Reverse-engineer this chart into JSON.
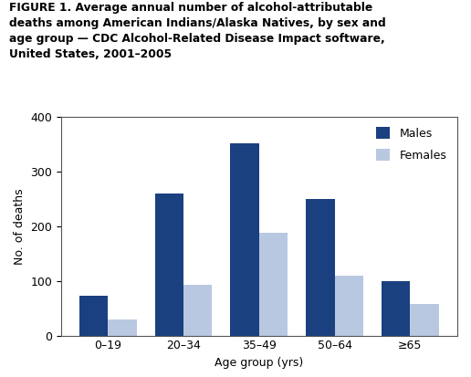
{
  "title_lines": [
    "FIGURE 1. Average annual number of alcohol-attributable",
    "deaths among American Indians/Alaska Natives, by sex and",
    "age group — CDC Alcohol-Related Disease Impact software,",
    "United States, 2001–2005"
  ],
  "categories": [
    "0–19",
    "20–34",
    "35–49",
    "50–64",
    "≥65"
  ],
  "males": [
    72,
    260,
    352,
    250,
    100
  ],
  "females": [
    30,
    93,
    188,
    110,
    57
  ],
  "male_color": "#1a4080",
  "female_color": "#b8c8e0",
  "ylabel": "No. of deaths",
  "xlabel": "Age group (yrs)",
  "ylim": [
    0,
    400
  ],
  "yticks": [
    0,
    100,
    200,
    300,
    400
  ],
  "legend_labels": [
    "Males",
    "Females"
  ],
  "bar_width": 0.38,
  "title_fontsize": 8.8,
  "axis_fontsize": 9,
  "tick_fontsize": 9,
  "legend_fontsize": 9
}
